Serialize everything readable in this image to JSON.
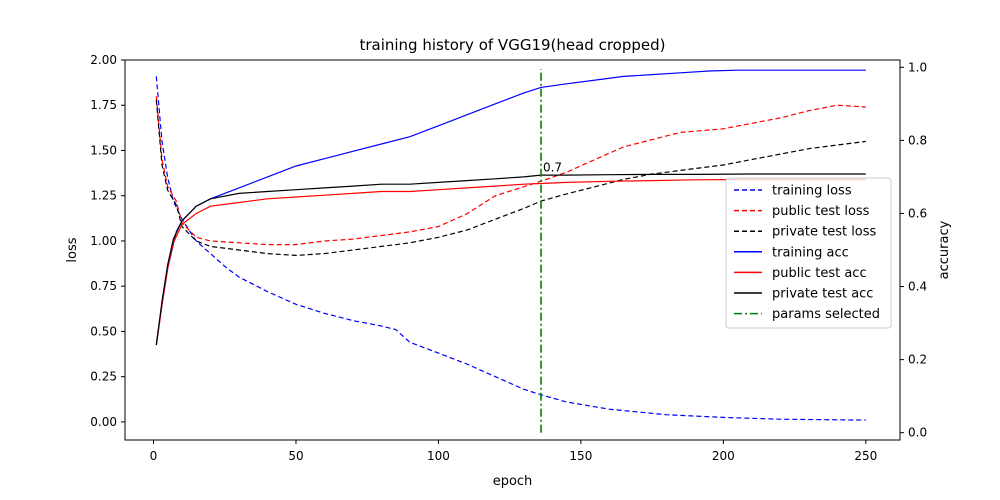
{
  "chart_data": {
    "type": "line",
    "title": "training history of VGG19(head cropped)",
    "xlabel": "epoch",
    "ylabel_left": "loss",
    "ylabel_right": "accuracy",
    "xlim": [
      -10,
      262
    ],
    "ylim_left": [
      -0.1,
      2.0
    ],
    "ylim_right": [
      -0.02,
      1.02
    ],
    "xticks": [
      0,
      50,
      100,
      150,
      200,
      250
    ],
    "yticks_left": [
      "0.00",
      "0.25",
      "0.50",
      "0.75",
      "1.00",
      "1.25",
      "1.50",
      "1.75",
      "2.00"
    ],
    "yticks_right": [
      "0.0",
      "0.2",
      "0.4",
      "0.6",
      "0.8",
      "1.0"
    ],
    "legend_position": "center-right",
    "series": [
      {
        "name": "training loss",
        "axis": "left",
        "color": "#0000ff",
        "dash": "dashed",
        "points": [
          [
            1,
            1.91
          ],
          [
            3,
            1.55
          ],
          [
            5,
            1.35
          ],
          [
            7,
            1.22
          ],
          [
            10,
            1.12
          ],
          [
            15,
            1.0
          ],
          [
            20,
            0.93
          ],
          [
            25,
            0.86
          ],
          [
            30,
            0.8
          ],
          [
            40,
            0.72
          ],
          [
            50,
            0.65
          ],
          [
            60,
            0.6
          ],
          [
            70,
            0.56
          ],
          [
            80,
            0.53
          ],
          [
            85,
            0.51
          ],
          [
            90,
            0.44
          ],
          [
            100,
            0.38
          ],
          [
            110,
            0.32
          ],
          [
            120,
            0.25
          ],
          [
            130,
            0.18
          ],
          [
            136,
            0.15
          ],
          [
            145,
            0.11
          ],
          [
            160,
            0.07
          ],
          [
            180,
            0.04
          ],
          [
            200,
            0.025
          ],
          [
            220,
            0.015
          ],
          [
            250,
            0.01
          ]
        ]
      },
      {
        "name": "public test loss",
        "axis": "left",
        "color": "#ff0000",
        "dash": "dashed",
        "points": [
          [
            1,
            1.8
          ],
          [
            3,
            1.45
          ],
          [
            5,
            1.3
          ],
          [
            8,
            1.22
          ],
          [
            10,
            1.1
          ],
          [
            15,
            1.02
          ],
          [
            20,
            1.0
          ],
          [
            30,
            0.99
          ],
          [
            40,
            0.98
          ],
          [
            50,
            0.98
          ],
          [
            60,
            1.0
          ],
          [
            70,
            1.01
          ],
          [
            80,
            1.03
          ],
          [
            90,
            1.05
          ],
          [
            100,
            1.08
          ],
          [
            110,
            1.15
          ],
          [
            120,
            1.25
          ],
          [
            130,
            1.3
          ],
          [
            136,
            1.33
          ],
          [
            145,
            1.38
          ],
          [
            155,
            1.45
          ],
          [
            165,
            1.52
          ],
          [
            175,
            1.56
          ],
          [
            185,
            1.6
          ],
          [
            200,
            1.62
          ],
          [
            210,
            1.65
          ],
          [
            220,
            1.68
          ],
          [
            230,
            1.72
          ],
          [
            240,
            1.75
          ],
          [
            250,
            1.74
          ]
        ]
      },
      {
        "name": "private test loss",
        "axis": "left",
        "color": "#000000",
        "dash": "dashed",
        "points": [
          [
            1,
            1.78
          ],
          [
            3,
            1.42
          ],
          [
            5,
            1.28
          ],
          [
            8,
            1.2
          ],
          [
            10,
            1.08
          ],
          [
            15,
            1.0
          ],
          [
            20,
            0.97
          ],
          [
            30,
            0.95
          ],
          [
            40,
            0.93
          ],
          [
            50,
            0.92
          ],
          [
            60,
            0.93
          ],
          [
            70,
            0.95
          ],
          [
            80,
            0.97
          ],
          [
            90,
            0.99
          ],
          [
            100,
            1.02
          ],
          [
            110,
            1.06
          ],
          [
            120,
            1.12
          ],
          [
            130,
            1.18
          ],
          [
            136,
            1.22
          ],
          [
            145,
            1.26
          ],
          [
            155,
            1.3
          ],
          [
            165,
            1.34
          ],
          [
            175,
            1.37
          ],
          [
            185,
            1.39
          ],
          [
            200,
            1.42
          ],
          [
            210,
            1.45
          ],
          [
            220,
            1.48
          ],
          [
            230,
            1.51
          ],
          [
            240,
            1.53
          ],
          [
            250,
            1.55
          ]
        ]
      },
      {
        "name": "training acc",
        "axis": "right",
        "color": "#0000ff",
        "dash": "solid",
        "points": [
          [
            1,
            0.24
          ],
          [
            3,
            0.35
          ],
          [
            5,
            0.45
          ],
          [
            8,
            0.55
          ],
          [
            10,
            0.58
          ],
          [
            15,
            0.62
          ],
          [
            20,
            0.64
          ],
          [
            30,
            0.67
          ],
          [
            40,
            0.7
          ],
          [
            50,
            0.73
          ],
          [
            60,
            0.75
          ],
          [
            70,
            0.77
          ],
          [
            80,
            0.79
          ],
          [
            90,
            0.81
          ],
          [
            100,
            0.84
          ],
          [
            110,
            0.87
          ],
          [
            120,
            0.9
          ],
          [
            130,
            0.93
          ],
          [
            136,
            0.945
          ],
          [
            145,
            0.955
          ],
          [
            155,
            0.965
          ],
          [
            165,
            0.975
          ],
          [
            175,
            0.98
          ],
          [
            185,
            0.985
          ],
          [
            195,
            0.99
          ],
          [
            205,
            0.992
          ],
          [
            250,
            0.992
          ]
        ]
      },
      {
        "name": "public test acc",
        "axis": "right",
        "color": "#ff0000",
        "dash": "solid",
        "points": [
          [
            1,
            0.24
          ],
          [
            3,
            0.35
          ],
          [
            5,
            0.45
          ],
          [
            7,
            0.52
          ],
          [
            10,
            0.57
          ],
          [
            15,
            0.6
          ],
          [
            20,
            0.62
          ],
          [
            30,
            0.63
          ],
          [
            40,
            0.64
          ],
          [
            50,
            0.645
          ],
          [
            60,
            0.65
          ],
          [
            70,
            0.655
          ],
          [
            80,
            0.66
          ],
          [
            90,
            0.66
          ],
          [
            100,
            0.665
          ],
          [
            110,
            0.67
          ],
          [
            120,
            0.675
          ],
          [
            130,
            0.68
          ],
          [
            136,
            0.682
          ],
          [
            145,
            0.685
          ],
          [
            160,
            0.688
          ],
          [
            175,
            0.69
          ],
          [
            190,
            0.692
          ],
          [
            210,
            0.693
          ],
          [
            250,
            0.693
          ]
        ]
      },
      {
        "name": "private test acc",
        "axis": "right",
        "color": "#000000",
        "dash": "solid",
        "points": [
          [
            1,
            0.24
          ],
          [
            3,
            0.36
          ],
          [
            5,
            0.46
          ],
          [
            7,
            0.53
          ],
          [
            10,
            0.58
          ],
          [
            15,
            0.62
          ],
          [
            20,
            0.64
          ],
          [
            30,
            0.655
          ],
          [
            40,
            0.66
          ],
          [
            50,
            0.665
          ],
          [
            60,
            0.67
          ],
          [
            70,
            0.675
          ],
          [
            80,
            0.68
          ],
          [
            90,
            0.68
          ],
          [
            100,
            0.685
          ],
          [
            110,
            0.69
          ],
          [
            120,
            0.695
          ],
          [
            130,
            0.7
          ],
          [
            136,
            0.705
          ],
          [
            145,
            0.705
          ],
          [
            160,
            0.706
          ],
          [
            175,
            0.707
          ],
          [
            190,
            0.707
          ],
          [
            210,
            0.708
          ],
          [
            250,
            0.708
          ]
        ]
      },
      {
        "name": "params selected",
        "axis": "right",
        "color": "#008000",
        "dash": "dashdot",
        "points": [
          [
            136,
            0.0
          ],
          [
            136,
            0.995
          ]
        ]
      }
    ],
    "annotations": [
      {
        "text": "0.7",
        "x": 136,
        "y": 0.715,
        "axis": "right"
      }
    ]
  }
}
